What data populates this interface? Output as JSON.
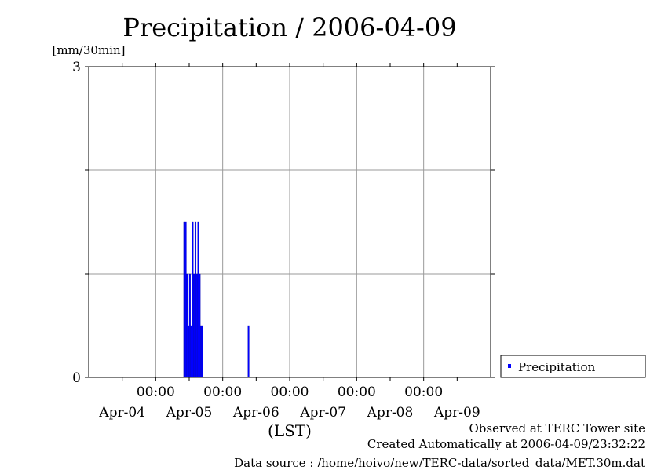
{
  "chart_data": {
    "type": "bar",
    "title": "Precipitation / 2006-04-09",
    "ylabel": "[mm/30min]",
    "xlabel": "(LST)",
    "ylim": [
      0,
      3
    ],
    "y_tick_labels": [
      "0",
      "3"
    ],
    "y_grid": [
      1,
      2
    ],
    "x_range_hours": [
      0,
      144
    ],
    "x_start": "Apr-04 00:00",
    "time_tick_labels": [
      "00:00",
      "00:00",
      "00:00",
      "00:00",
      "00:00"
    ],
    "date_labels": [
      "Apr-04",
      "Apr-05",
      "Apr-06",
      "Apr-07",
      "Apr-08",
      "Apr-09"
    ],
    "bar_width_hours": 0.5,
    "grid": true,
    "legend_position": "right",
    "series": [
      {
        "name": "Precipitation",
        "color": "#0000ff",
        "points": [
          {
            "hour": 34.0,
            "value": 1.5
          },
          {
            "hour": 34.5,
            "value": 1.5
          },
          {
            "hour": 35.0,
            "value": 1.0
          },
          {
            "hour": 35.5,
            "value": 0.5
          },
          {
            "hour": 36.0,
            "value": 1.0
          },
          {
            "hour": 36.5,
            "value": 0.5
          },
          {
            "hour": 37.0,
            "value": 1.5
          },
          {
            "hour": 37.5,
            "value": 1.0
          },
          {
            "hour": 38.0,
            "value": 1.5
          },
          {
            "hour": 38.5,
            "value": 1.0
          },
          {
            "hour": 39.0,
            "value": 1.5
          },
          {
            "hour": 39.5,
            "value": 1.0
          },
          {
            "hour": 40.0,
            "value": 0.5
          },
          {
            "hour": 40.5,
            "value": 0.5
          },
          {
            "hour": 57.0,
            "value": 0.5
          }
        ]
      }
    ]
  },
  "footer": {
    "observed": "Observed at TERC Tower site",
    "created": "Created Automatically at 2006-04-09/23:32:22",
    "source": "Data source : /home/hoivo/new/TERC-data/sorted_data/MET.30m.dat"
  }
}
